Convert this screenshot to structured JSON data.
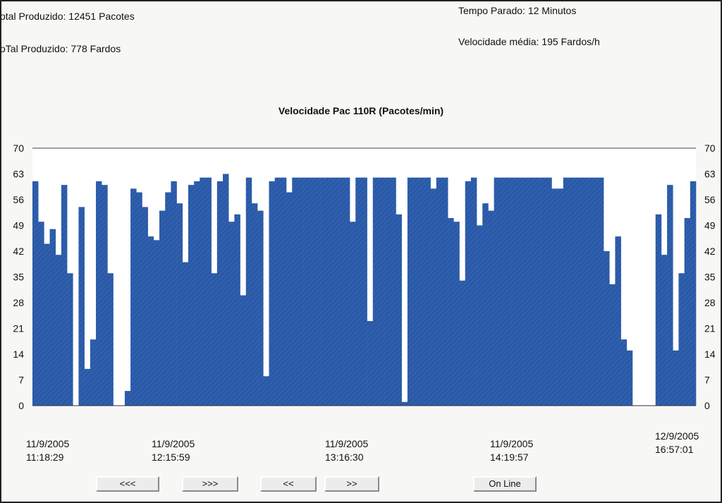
{
  "stats": {
    "total_pacotes": "otal Produzido: 12451 Pacotes",
    "total_fardos": "oTal Produzido: 778 Fardos",
    "tempo_parado": "Tempo Parado: 12 Minutos",
    "velocidade_media": "Velocidade média: 195 Fardos/h"
  },
  "colors": {
    "bar": "#2a5aa7",
    "grid": "#c8c8c8",
    "axis": "#555555"
  },
  "chart_data": {
    "type": "bar",
    "title": "Velocidade Pac 110R (Pacotes/min)",
    "ylim": [
      0,
      70
    ],
    "yticks": [
      0,
      7,
      14,
      21,
      28,
      35,
      42,
      49,
      56,
      63,
      70
    ],
    "grid": true,
    "values": [
      61,
      50,
      44,
      48,
      41,
      60,
      36,
      0,
      54,
      10,
      18,
      61,
      60,
      36,
      0,
      0,
      4,
      59,
      58,
      54,
      46,
      45,
      53,
      58,
      61,
      55,
      39,
      60,
      61,
      62,
      62,
      36,
      61,
      63,
      50,
      52,
      30,
      62,
      55,
      53,
      8,
      61,
      62,
      62,
      58,
      62,
      62,
      62,
      62,
      62,
      62,
      62,
      62,
      62,
      62,
      50,
      62,
      62,
      23,
      62,
      62,
      62,
      62,
      52,
      1,
      62,
      62,
      62,
      62,
      59,
      62,
      62,
      51,
      50,
      34,
      61,
      62,
      49,
      55,
      53,
      62,
      62,
      62,
      62,
      62,
      62,
      62,
      62,
      62,
      62,
      59,
      59,
      62,
      62,
      62,
      62,
      62,
      62,
      62,
      42,
      33,
      46,
      18,
      15,
      0,
      0,
      0,
      0,
      52,
      41,
      60,
      15,
      36,
      51,
      61
    ],
    "x_labels": [
      {
        "date": "11/9/2005",
        "time": "11:18:29"
      },
      {
        "date": "11/9/2005",
        "time": "12:15:59"
      },
      {
        "date": "11/9/2005",
        "time": "13:16:30"
      },
      {
        "date": "11/9/2005",
        "time": "14:19:57"
      },
      {
        "date": "12/9/2005",
        "time": "16:57:01"
      }
    ]
  },
  "buttons": {
    "first": "<<<",
    "last": ">>>",
    "prev": "<<",
    "next": ">>",
    "online": "On Line"
  }
}
